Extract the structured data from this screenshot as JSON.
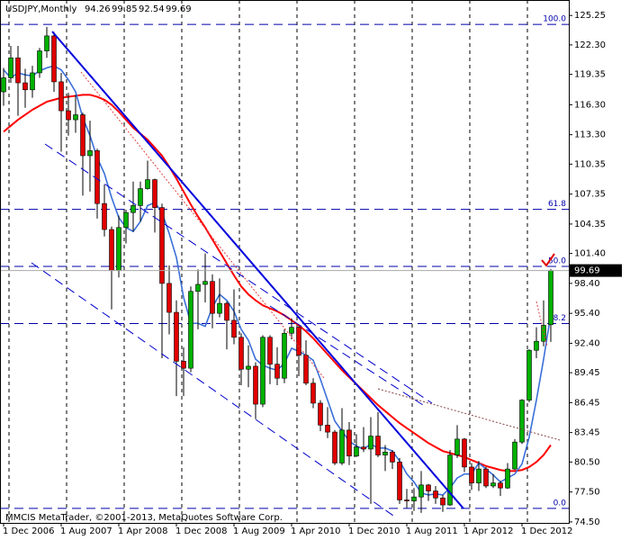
{
  "chart_data": {
    "type": "candlestick",
    "title": "USDJPY,Monthly",
    "footer": "MMCIS MetaTrader, ©2001-2013, MetaQuotes Software Corp.",
    "categories": [
      "1 Dec 2006",
      null,
      null,
      null,
      null,
      null,
      null,
      null,
      "1 Aug 2007",
      null,
      null,
      null,
      null,
      null,
      null,
      null,
      "1 Apr 2008",
      null,
      null,
      null,
      null,
      null,
      null,
      null,
      "1 Dec 2008",
      null,
      null,
      null,
      null,
      null,
      null,
      null,
      "1 Aug 2009",
      null,
      null,
      null,
      null,
      null,
      null,
      null,
      "1 Apr 2010",
      null,
      null,
      null,
      null,
      null,
      null,
      null,
      "1 Dec 2010",
      null,
      null,
      null,
      null,
      null,
      null,
      null,
      "1 Aug 2011",
      null,
      null,
      null,
      null,
      null,
      null,
      null,
      "1 Apr 2012",
      null,
      null,
      null,
      null,
      null,
      null,
      null,
      "1 Dec 2012",
      null,
      null,
      null,
      null
    ],
    "open": [
      117.6,
      119.0,
      121.0,
      118.5,
      117.8,
      119.5,
      121.7,
      123.2,
      118.6,
      115.7,
      114.8,
      115.3,
      111.2,
      111.7,
      106.4,
      103.8,
      99.7,
      104.0,
      105.5,
      106.2,
      107.9,
      108.8,
      106.0,
      98.4,
      95.5,
      90.6,
      89.9,
      97.6,
      98.3,
      98.6,
      95.4,
      96.4,
      94.7,
      93.0,
      89.8,
      90.1,
      86.3,
      93.0,
      90.3,
      88.9,
      93.4,
      94.0,
      91.2,
      88.4,
      86.4,
      84.2,
      83.5,
      80.4,
      83.7,
      81.1,
      82.0,
      81.8,
      83.1,
      81.2,
      81.5,
      80.5,
      76.7,
      76.6,
      77.0,
      78.2,
      77.6,
      76.9,
      76.2,
      81.2,
      82.8,
      80.0,
      78.4,
      79.8,
      78.1,
      78.4,
      77.9,
      79.8,
      82.5,
      86.7,
      91.7,
      92.6,
      94.26
    ],
    "high": [
      120.0,
      122.2,
      122.2,
      119.9,
      120.2,
      122.0,
      124.1,
      123.6,
      119.5,
      117.5,
      117.3,
      115.5,
      114.7,
      111.9,
      108.3,
      104.1,
      105.2,
      105.8,
      108.6,
      108.6,
      110.7,
      108.9,
      106.4,
      100.2,
      96.7,
      92.0,
      98.1,
      99.8,
      101.4,
      99.3,
      98.9,
      96.6,
      97.8,
      93.4,
      92.2,
      90.5,
      93.2,
      93.2,
      92.0,
      93.8,
      94.9,
      94.1,
      92.7,
      88.9,
      86.7,
      86.0,
      83.7,
      85.9,
      84.5,
      83.3,
      84.0,
      85.0,
      85.5,
      82.2,
      81.7,
      80.9,
      77.8,
      77.9,
      79.6,
      78.3,
      78.1,
      77.2,
      81.7,
      84.2,
      82.9,
      80.4,
      80.6,
      80.0,
      79.3,
      78.6,
      80.4,
      82.8,
      86.8,
      91.8,
      94.0,
      96.7,
      99.85
    ],
    "low": [
      116.2,
      118.5,
      115.2,
      116.0,
      117.0,
      119.0,
      121.0,
      117.6,
      111.6,
      113.2,
      113.5,
      107.2,
      107.6,
      104.9,
      103.1,
      95.8,
      99.0,
      102.4,
      103.6,
      104.6,
      107.8,
      103.5,
      90.9,
      93.3,
      87.1,
      87.1,
      89.5,
      93.8,
      96.5,
      93.9,
      95.0,
      91.8,
      92.3,
      88.2,
      88.0,
      84.8,
      86.0,
      88.3,
      88.2,
      88.4,
      92.8,
      89.1,
      88.2,
      85.9,
      83.6,
      82.9,
      80.2,
      80.2,
      80.2,
      81.0,
      81.5,
      76.3,
      81.0,
      79.6,
      79.8,
      76.3,
      75.9,
      75.6,
      75.4,
      76.6,
      76.3,
      75.5,
      76.1,
      80.9,
      79.5,
      77.7,
      77.6,
      77.9,
      77.9,
      77.1,
      77.8,
      79.7,
      82.3,
      86.5,
      90.9,
      92.1,
      92.54
    ],
    "close": [
      119.0,
      121.0,
      118.5,
      117.8,
      119.5,
      121.7,
      123.2,
      118.6,
      115.7,
      114.8,
      115.3,
      111.2,
      111.7,
      106.4,
      103.8,
      99.7,
      104.0,
      105.5,
      106.2,
      107.9,
      108.8,
      106.0,
      98.4,
      95.5,
      90.6,
      89.9,
      97.6,
      98.3,
      98.6,
      95.4,
      96.4,
      94.7,
      93.0,
      89.8,
      90.1,
      86.3,
      93.0,
      90.3,
      88.9,
      93.4,
      94.0,
      91.2,
      88.4,
      86.4,
      84.2,
      83.5,
      80.4,
      83.7,
      81.1,
      82.0,
      81.8,
      83.1,
      81.2,
      81.5,
      80.5,
      76.7,
      76.6,
      77.0,
      78.2,
      77.6,
      76.9,
      76.2,
      81.2,
      82.8,
      80.0,
      78.4,
      79.8,
      78.1,
      78.4,
      77.9,
      79.8,
      82.5,
      86.7,
      91.7,
      92.6,
      94.2,
      99.69
    ],
    "up_color": "#00b000",
    "down_color": "#e00000",
    "overlays": [
      {
        "color": "#ff0000",
        "values": [
          113.6,
          114.2,
          114.8,
          115.3,
          115.8,
          116.2,
          116.6,
          116.8,
          117.0,
          117.1,
          117.2,
          117.3,
          117.3,
          117.1,
          116.8,
          116.3,
          115.6,
          114.8,
          114.0,
          113.4,
          112.8,
          112.0,
          111.2,
          110.1,
          108.9,
          107.6,
          106.3,
          105.1,
          104.0,
          102.8,
          101.6,
          100.4,
          99.2,
          98.1,
          97.3,
          96.7,
          96.2,
          95.9,
          95.6,
          95.2,
          94.7,
          94.2,
          93.6,
          92.9,
          92.1,
          91.3,
          90.5,
          89.7,
          89.0,
          88.3,
          87.6,
          86.9,
          86.2,
          85.6,
          85.0,
          84.4,
          83.9,
          83.4,
          82.9,
          82.4,
          82.0,
          81.6,
          81.4,
          81.2,
          81.0,
          80.7,
          80.4,
          80.1,
          79.9,
          79.7,
          79.6,
          79.6,
          79.7,
          80.0,
          80.5,
          81.2,
          82.2
        ]
      },
      {
        "color": "#3a6fd8",
        "values": [
          119.8,
          119.0,
          119.5,
          119.3,
          119.2,
          119.7,
          120.0,
          120.2,
          119.8,
          118.8,
          117.6,
          115.0,
          113.2,
          111.0,
          109.4,
          107.0,
          105.0,
          104.0,
          103.6,
          104.6,
          106.2,
          106.5,
          105.5,
          103.4,
          101.0,
          97.0,
          94.4,
          94.4,
          94.1,
          96.0,
          97.3,
          96.7,
          95.6,
          93.8,
          92.7,
          90.8,
          90.2,
          89.9,
          89.7,
          90.4,
          91.9,
          91.6,
          91.2,
          90.7,
          88.8,
          86.7,
          84.6,
          83.6,
          82.6,
          82.1,
          81.8,
          82.3,
          81.9,
          81.9,
          81.6,
          80.6,
          79.3,
          78.5,
          77.4,
          77.2,
          77.3,
          77.2,
          77.9,
          78.9,
          79.3,
          79.3,
          80.4,
          79.8,
          79.2,
          78.5,
          78.9,
          79.3,
          80.3,
          83.0,
          86.7,
          90.8,
          95.3
        ]
      }
    ],
    "levels": [
      {
        "value": 124.35,
        "label": "100.0"
      },
      {
        "value": 105.82,
        "label": "61.8"
      },
      {
        "value": 100.1,
        "label": "50.0"
      },
      {
        "value": 94.38,
        "label": "38.2"
      },
      {
        "value": 75.85,
        "label": "0.0"
      }
    ],
    "ylim": [
      74.4,
      126.8
    ],
    "yticks": [
      125.25,
      {
        "value": 122.3,
        "label": "122.30"
      },
      119.35,
      {
        "value": 116.3,
        "label": "116.30"
      },
      {
        "value": 113.3,
        "label": "113.30"
      },
      110.35,
      107.35,
      104.35,
      {
        "value": 101.4,
        "label": "101.40"
      },
      {
        "value": 98.4,
        "label": "98.40"
      },
      {
        "value": 95.4,
        "label": "95.40"
      },
      {
        "value": 92.4,
        "label": "92.40"
      },
      89.45,
      86.45,
      83.45,
      {
        "value": 80.5,
        "label": "80.50"
      },
      {
        "value": 77.5,
        "label": "77.50"
      },
      {
        "value": 74.5,
        "label": "74.50"
      }
    ],
    "grid": true
  }
}
